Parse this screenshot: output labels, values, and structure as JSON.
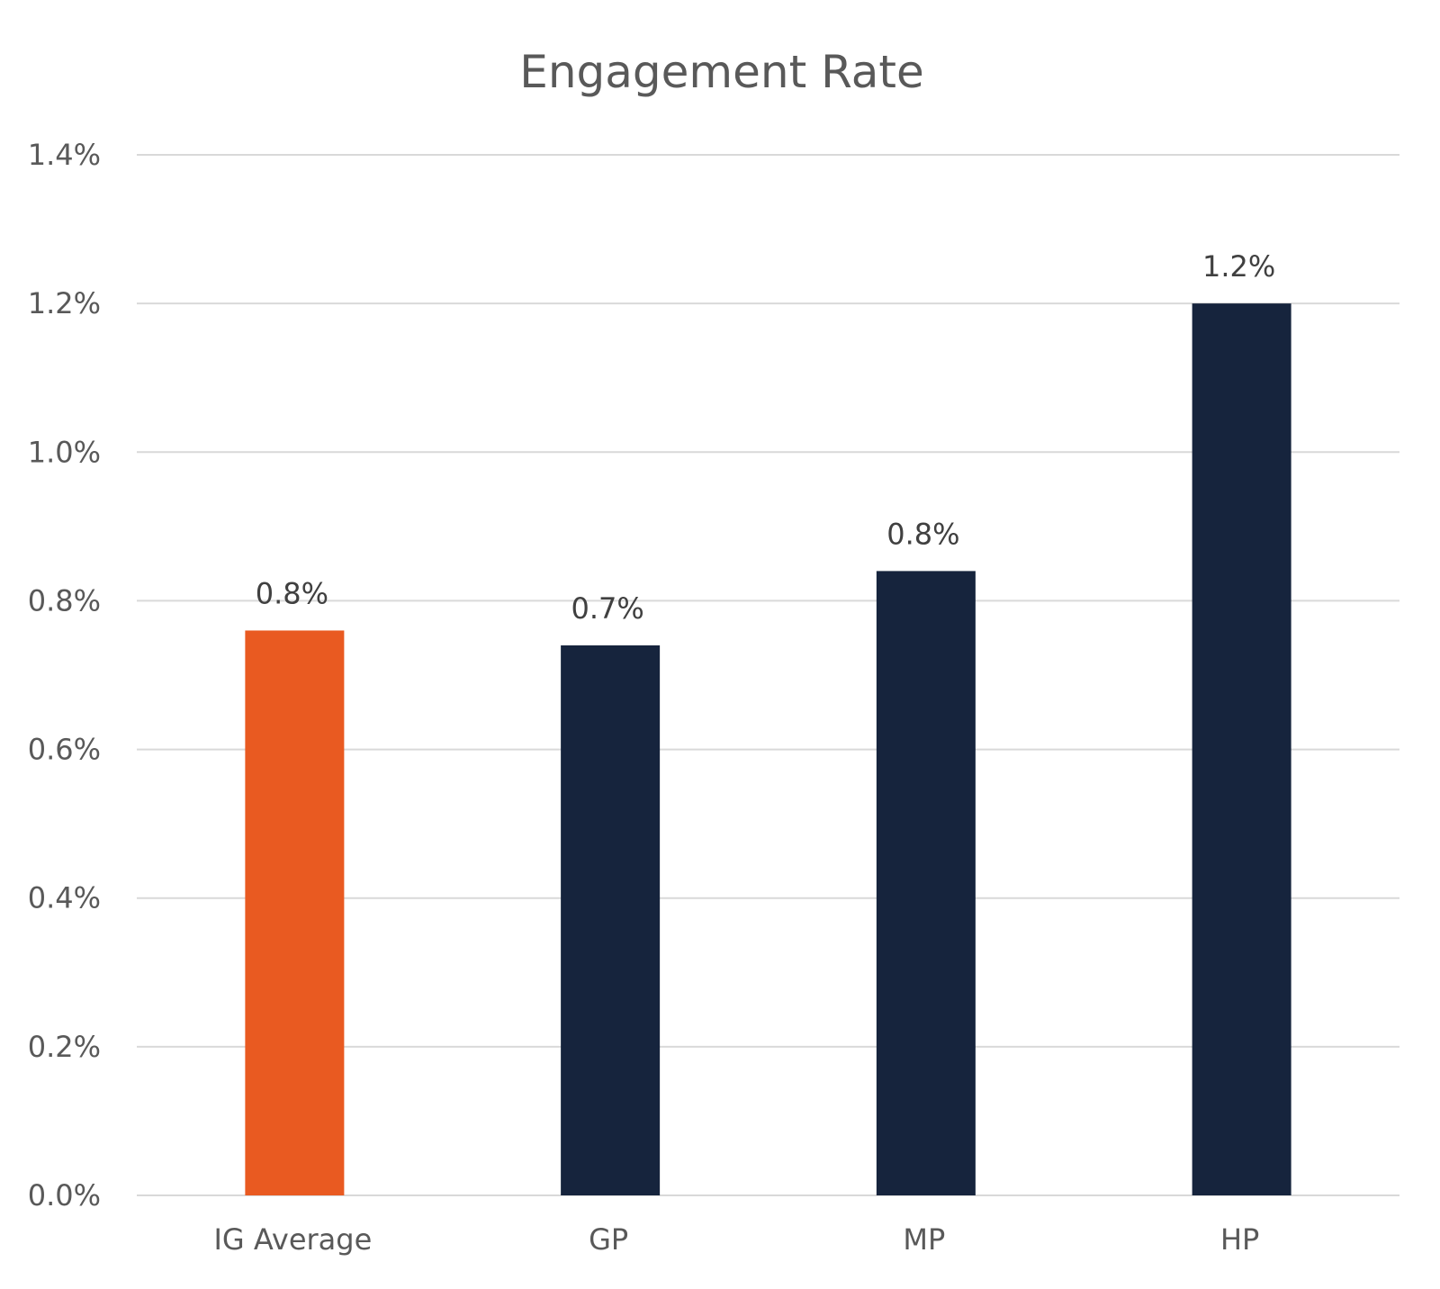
{
  "chart_data": {
    "type": "bar",
    "title": "Engagement Rate",
    "xlabel": "",
    "ylabel": "",
    "categories": [
      "IG Average",
      "GP",
      "MP",
      "HP"
    ],
    "values": [
      0.76,
      0.74,
      0.84,
      1.2
    ],
    "data_labels": [
      "0.8%",
      "0.7%",
      "0.8%",
      "1.2%"
    ],
    "bar_colors": [
      "#E95A21",
      "#16243D",
      "#16243D",
      "#16243D"
    ],
    "ylim": [
      0,
      1.4
    ],
    "y_ticks": [
      0,
      0.2,
      0.4,
      0.6,
      0.8,
      1.0,
      1.2,
      1.4
    ],
    "y_tick_labels": [
      "0.0%",
      "0.2%",
      "0.4%",
      "0.6%",
      "0.8%",
      "1.0%",
      "1.2%",
      "1.4%"
    ],
    "grid": true,
    "legend": "none"
  }
}
